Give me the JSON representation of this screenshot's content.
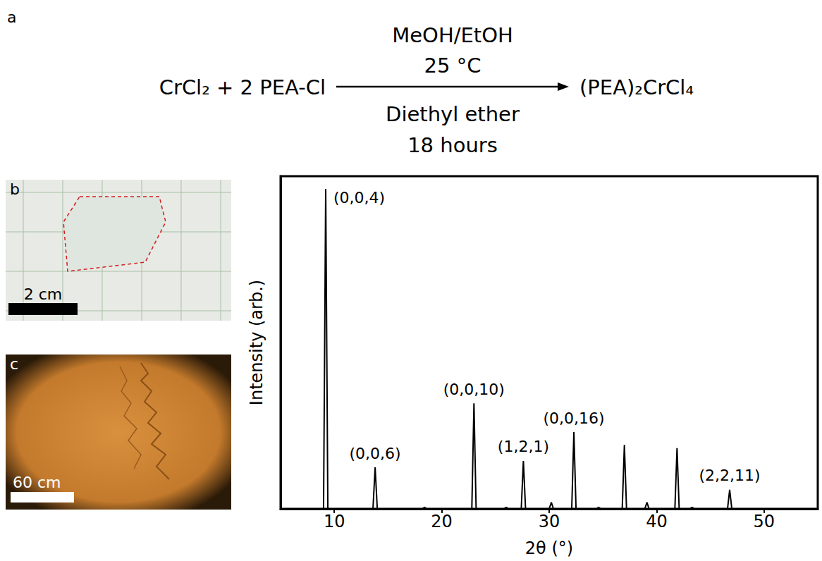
{
  "chart_data": {
    "type": "line",
    "x_label": "2θ (°)",
    "y_label": "Intensity (arb.)",
    "x": [
      5,
      9.0,
      9.2,
      9.4,
      13.6,
      13.8,
      14.0,
      18.2,
      18.4,
      18.6,
      22.8,
      23.0,
      23.2,
      25.8,
      26.0,
      26.2,
      27.4,
      27.6,
      27.8,
      30.0,
      30.2,
      30.4,
      32.1,
      32.3,
      32.5,
      34.4,
      34.6,
      34.8,
      36.8,
      37.0,
      37.2,
      38.9,
      39.1,
      39.3,
      41.7,
      41.9,
      42.1,
      43.1,
      43.3,
      43.5,
      46.6,
      46.8,
      47.0,
      55
    ],
    "values": [
      0,
      0,
      100,
      0,
      0,
      13,
      0,
      0,
      0.5,
      0,
      0,
      33,
      0,
      0,
      0.5,
      0,
      0,
      15,
      0,
      0,
      2,
      0,
      0,
      24,
      0,
      0,
      0.5,
      0,
      0,
      20,
      0,
      0,
      2,
      0,
      0,
      19,
      0,
      0,
      0.5,
      0,
      0,
      6,
      0,
      0
    ],
    "color": "#000000",
    "xlim": [
      5,
      55
    ],
    "xticks": [
      10,
      20,
      30,
      40,
      50
    ],
    "ylim": [
      0,
      104
    ],
    "tick_labels": "x",
    "grid": false,
    "annotations": [
      {
        "text": "(0,0,4)",
        "x": 9.2,
        "y": 100
      },
      {
        "text": "(0,0,6)",
        "x": 13.8,
        "y": 13
      },
      {
        "text": "(0,0,10)",
        "x": 23.0,
        "y": 33
      },
      {
        "text": "(1,2,1)",
        "x": 27.6,
        "y": 15
      },
      {
        "text": "(0,0,16)",
        "x": 32.3,
        "y": 24
      },
      {
        "text": "(2,2,11)",
        "x": 46.8,
        "y": 6
      }
    ]
  },
  "scheme": {
    "label": "a",
    "reactants": "CrCl₂ + 2 PEA-Cl",
    "above": [
      "MeOH/EtOH",
      "25 °C"
    ],
    "below": [
      "Diethyl ether",
      "18 hours"
    ],
    "product": "(PEA)₂CrCl₄"
  },
  "photos": [
    {
      "label": "b",
      "scale_bar": "2 cm"
    },
    {
      "label": "c",
      "scale_bar": "60 cm"
    }
  ]
}
